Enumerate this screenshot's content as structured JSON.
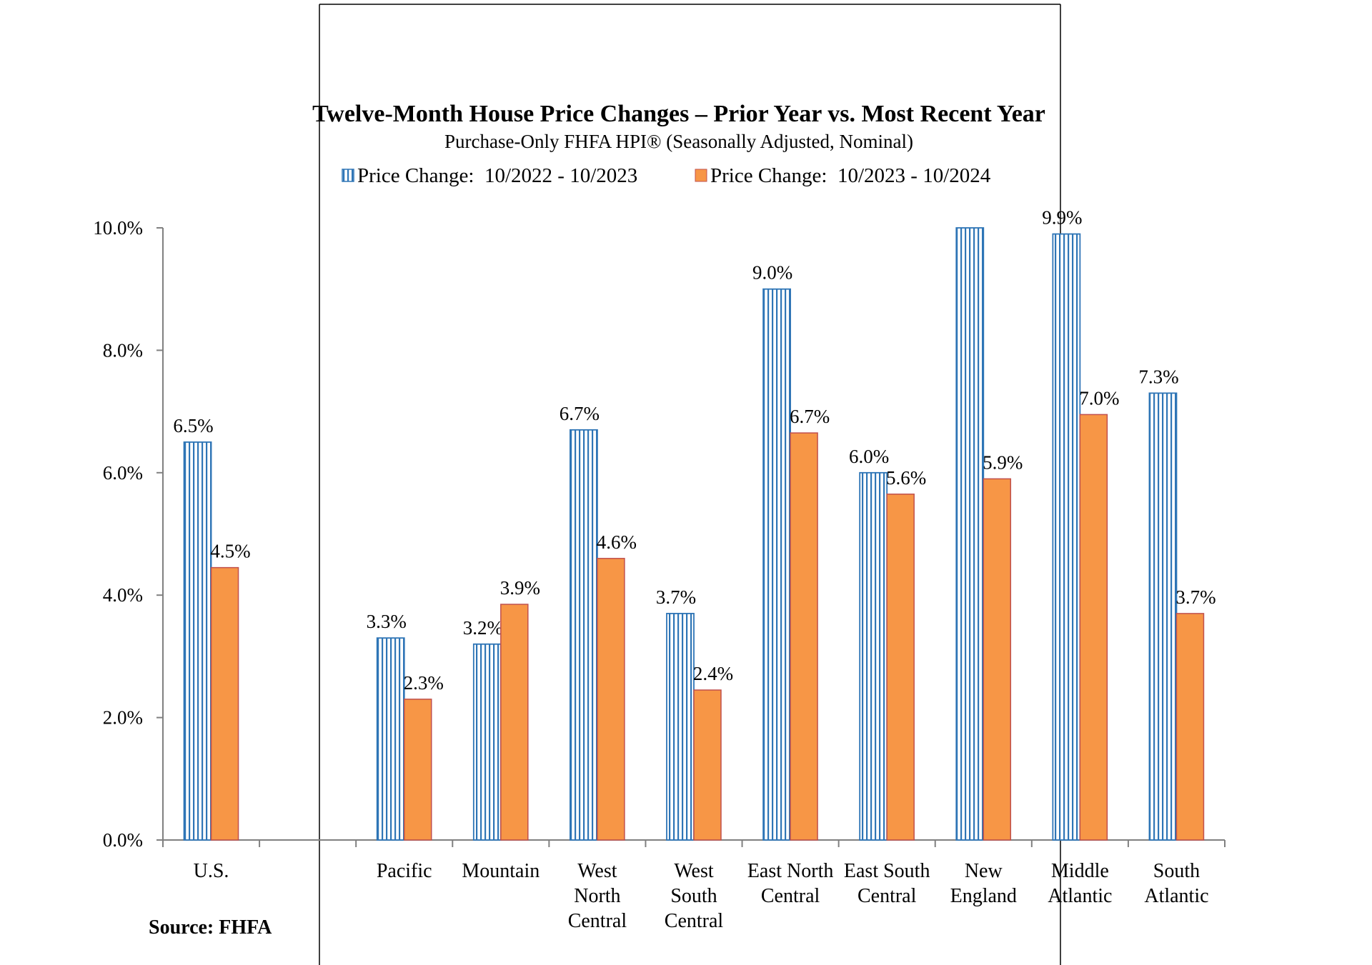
{
  "chart_data": {
    "type": "bar",
    "title": "Twelve-Month House Price Changes – Prior Year vs. Most Recent Year",
    "subtitle": "Purchase-Only FHFA HPI® (Seasonally Adjusted, Nominal)",
    "source": "Source: FHFA",
    "categories": [
      [
        "U.S."
      ],
      [],
      [
        "Pacific"
      ],
      [
        "Mountain"
      ],
      [
        "West",
        "North",
        "Central"
      ],
      [
        "West",
        "South",
        "Central"
      ],
      [
        "East North",
        "Central"
      ],
      [
        "East South",
        "Central"
      ],
      [
        "New",
        "England"
      ],
      [
        "Middle",
        "Atlantic"
      ],
      [
        "South",
        "Atlantic"
      ]
    ],
    "series": [
      {
        "name": "Price Change:  10/2022 - 10/2023",
        "pattern": "vertical-stripes",
        "color": "#2E75B6",
        "values": [
          6.5,
          null,
          3.3,
          3.2,
          6.7,
          3.7,
          9.0,
          6.0,
          10.0,
          9.9,
          7.3
        ],
        "labels": [
          "6.5%",
          "",
          "3.3%",
          "3.2%",
          "6.7%",
          "3.7%",
          "9.0%",
          "6.0%",
          "",
          "9.9%",
          "7.3%"
        ]
      },
      {
        "name": "Price Change:  10/2023 - 10/2024",
        "color": "#F79646",
        "border": "#C0504D",
        "values": [
          4.45,
          null,
          2.3,
          3.85,
          4.6,
          2.45,
          6.65,
          5.65,
          5.9,
          6.95,
          3.7
        ],
        "labels": [
          "4.5%",
          "",
          "2.3%",
          "3.9%",
          "4.6%",
          "2.4%",
          "6.7%",
          "5.6%",
          "5.9%",
          "7.0%",
          "3.7%"
        ]
      }
    ],
    "yticks": [
      "0.0%",
      "2.0%",
      "4.0%",
      "6.0%",
      "8.0%",
      "10.0%"
    ],
    "ylim": [
      0,
      10
    ],
    "grid": false,
    "legend": "top-center"
  }
}
